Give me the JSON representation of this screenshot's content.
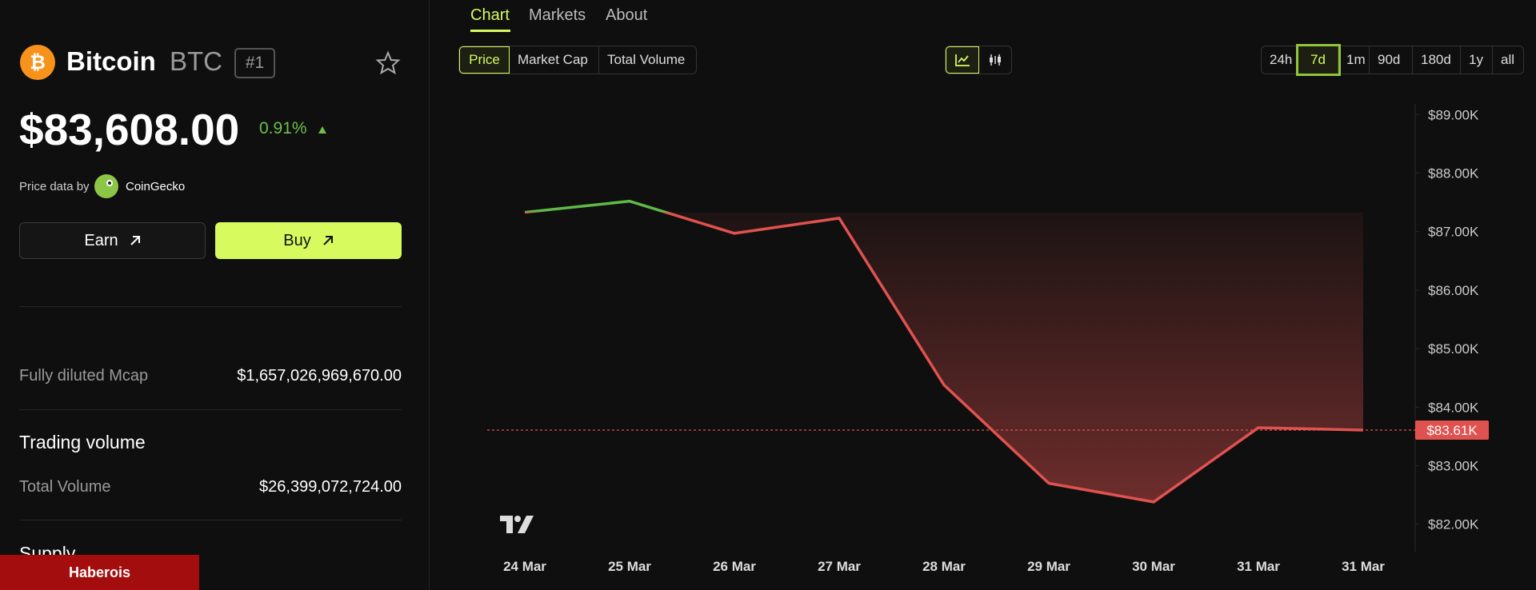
{
  "coin": {
    "name": "Bitcoin",
    "symbol": "BTC",
    "rank": "#1",
    "price": "$83,608.00",
    "change": "0.91%",
    "source_prefix": "Price data by",
    "source": "CoinGecko"
  },
  "buttons": [
    "Earn",
    "Buy"
  ],
  "stats": {
    "fdv_label": "Fully diluted Mcap",
    "fdv_value": "$1,657,026,969,670.00",
    "volume_heading": "Trading volume",
    "volume_label": "Total Volume",
    "volume_value": "$26,399,072,724.00",
    "supply_heading": "Supply"
  },
  "watermark": "Haberois",
  "tabs": [
    "Chart",
    "Markets",
    "About"
  ],
  "metrics": [
    "Price",
    "Market Cap",
    "Total Volume"
  ],
  "ranges": [
    "24h",
    "7d",
    "1m",
    "90d",
    "180d",
    "1y",
    "all"
  ],
  "chart_data": {
    "type": "line",
    "categories": [
      "24 Mar",
      "25 Mar",
      "26 Mar",
      "27 Mar",
      "28 Mar",
      "29 Mar",
      "30 Mar",
      "31 Mar",
      "31 Mar"
    ],
    "values": [
      87330,
      87520,
      86970,
      87230,
      84380,
      82700,
      82380,
      83650,
      83608
    ],
    "up_color": "#5fb946",
    "down_color": "#e0524f",
    "ylim": [
      81600,
      89100
    ],
    "yticks": [
      {
        "value": 82000,
        "label": "$82.00K"
      },
      {
        "value": 83000,
        "label": "$83.00K"
      },
      {
        "value": 84000,
        "label": "$84.00K"
      },
      {
        "value": 85000,
        "label": "$85.00K"
      },
      {
        "value": 86000,
        "label": "$86.00K"
      },
      {
        "value": 87000,
        "label": "$87.00K"
      },
      {
        "value": 88000,
        "label": "$88.00K"
      },
      {
        "value": 89000,
        "label": "$89.00K"
      }
    ],
    "price_line": {
      "value": 83608,
      "label": "$83.61K"
    }
  }
}
